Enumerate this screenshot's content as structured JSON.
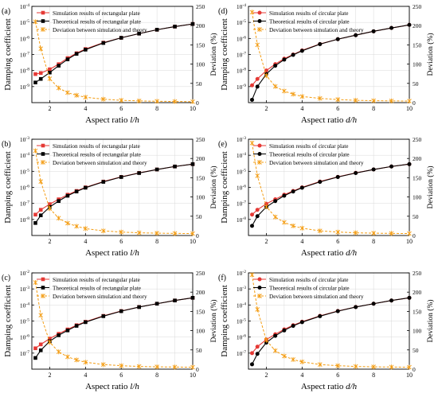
{
  "figure": {
    "label_x": "Aspect ratio",
    "label_y_left": "Damping coefficient",
    "label_y_right": "Deviation (%)",
    "colors": {
      "simulation": "#e53935",
      "theory": "#000000",
      "deviation": "#f39c12",
      "grid": "#d9d9d9"
    }
  },
  "chart_data": [
    {
      "panel": "(a)",
      "type": "line",
      "axis_var": "l/h",
      "log_y": true,
      "xlim": [
        1,
        10
      ],
      "ylim_exp": [
        -10,
        -4
      ],
      "yticks_exp": [
        -9,
        -8,
        -7,
        -6,
        -5,
        -4
      ],
      "y2lim": [
        0,
        250
      ],
      "y2ticks": [
        0,
        50,
        100,
        150,
        200,
        250
      ],
      "xticks": [
        2,
        4,
        6,
        8,
        10
      ],
      "x": [
        1.2,
        1.5,
        2,
        2.5,
        3,
        3.5,
        4,
        5,
        6,
        7,
        8,
        9,
        10
      ],
      "series": [
        {
          "name": "Simulation results of rectangular plate",
          "style": "square",
          "values": [
            6e-09,
            7e-09,
            1.2e-08,
            2.5e-08,
            6e-08,
            1.2e-07,
            2.2e-07,
            5.5e-07,
            1.1e-06,
            2e-06,
            3.5e-06,
            5.5e-06,
            8e-06
          ]
        },
        {
          "name": "Theoretical results of rectangular plate",
          "style": "square",
          "values": [
            1.8e-09,
            3e-09,
            7.5e-09,
            2e-08,
            5e-08,
            1.1e-07,
            2e-07,
            5.2e-07,
            1.1e-06,
            2e-06,
            3.5e-06,
            5.5e-06,
            8e-06
          ]
        },
        {
          "name": "Deviation between simulation and theory",
          "style": "cross",
          "axis": "right",
          "values": [
            210,
            140,
            62,
            38,
            26,
            19,
            14,
            9,
            6,
            4.5,
            3.5,
            3,
            2.5
          ]
        }
      ]
    },
    {
      "panel": "(b)",
      "type": "line",
      "axis_var": "l/h",
      "log_y": true,
      "xlim": [
        1,
        10
      ],
      "ylim_exp": [
        -9,
        -3
      ],
      "yticks_exp": [
        -8,
        -7,
        -6,
        -5,
        -4,
        -3
      ],
      "y2lim": [
        0,
        250
      ],
      "y2ticks": [
        0,
        50,
        100,
        150,
        200,
        250
      ],
      "xticks": [
        2,
        4,
        6,
        8,
        10
      ],
      "x": [
        1.2,
        1.5,
        2,
        2.5,
        3,
        3.5,
        4,
        5,
        6,
        7,
        8,
        9,
        10
      ],
      "series": [
        {
          "name": "Simulation results of rectangular plate",
          "style": "square",
          "values": [
            2e-08,
            4e-08,
            9e-08,
            1.8e-07,
            3.5e-07,
            6e-07,
            1e-06,
            2.3e-06,
            4.5e-06,
            8e-06,
            1.3e-05,
            2e-05,
            2.8e-05
          ]
        },
        {
          "name": "Theoretical results of rectangular plate",
          "style": "square",
          "values": [
            6e-09,
            1.8e-08,
            6e-08,
            1.4e-07,
            3e-07,
            5.5e-07,
            9.5e-07,
            2.2e-06,
            4.4e-06,
            7.8e-06,
            1.3e-05,
            2e-05,
            2.8e-05
          ]
        },
        {
          "name": "Deviation between simulation and theory",
          "style": "cross",
          "axis": "right",
          "values": [
            220,
            140,
            70,
            45,
            32,
            24,
            18,
            12,
            9,
            7,
            6,
            5.5,
            5
          ]
        }
      ]
    },
    {
      "panel": "(c)",
      "type": "line",
      "axis_var": "l/h",
      "log_y": true,
      "xlim": [
        1,
        10
      ],
      "ylim_exp": [
        -8,
        -2
      ],
      "yticks_exp": [
        -7,
        -6,
        -5,
        -4,
        -3,
        -2
      ],
      "y2lim": [
        0,
        250
      ],
      "y2ticks": [
        0,
        50,
        100,
        150,
        200,
        250
      ],
      "xticks": [
        2,
        4,
        6,
        8,
        10
      ],
      "x": [
        1.2,
        1.5,
        2,
        2.5,
        3,
        3.5,
        4,
        5,
        6,
        7,
        8,
        9,
        10
      ],
      "series": [
        {
          "name": "Simulation results of rectangular plate",
          "style": "square",
          "values": [
            2e-07,
            3.5e-07,
            8e-07,
            1.6e-06,
            3e-06,
            5.5e-06,
            9e-06,
            2.1e-05,
            4.2e-05,
            7.5e-05,
            0.00012,
            0.00019,
            0.00028
          ]
        },
        {
          "name": "Theoretical results of rectangular plate",
          "style": "square",
          "values": [
            5e-08,
            1.5e-07,
            5.5e-07,
            1.3e-06,
            2.6e-06,
            5e-06,
            8.5e-06,
            2e-05,
            4.1e-05,
            7.4e-05,
            0.00012,
            0.00019,
            0.00028
          ]
        },
        {
          "name": "Deviation between simulation and theory",
          "style": "cross",
          "axis": "right",
          "values": [
            225,
            140,
            70,
            45,
            32,
            24,
            18,
            12,
            9,
            7,
            6,
            5.5,
            5
          ]
        }
      ]
    },
    {
      "panel": "(d)",
      "type": "line",
      "axis_var": "d/h",
      "log_y": true,
      "xlim": [
        1,
        10
      ],
      "ylim_exp": [
        -10,
        -4
      ],
      "yticks_exp": [
        -9,
        -8,
        -7,
        -6,
        -5,
        -4
      ],
      "y2lim": [
        0,
        250
      ],
      "y2ticks": [
        0,
        50,
        100,
        150,
        200,
        250
      ],
      "xticks": [
        2,
        4,
        6,
        8,
        10
      ],
      "x": [
        1.2,
        1.5,
        2,
        2.5,
        3,
        3.5,
        4,
        5,
        6,
        7,
        8,
        9,
        10
      ],
      "series": [
        {
          "name": "Simulation results of circular plate",
          "style": "circle",
          "values": [
            1.2e-09,
            3e-09,
            1e-08,
            2.5e-08,
            5.5e-08,
            1e-07,
            1.8e-07,
            4.5e-07,
            9e-07,
            1.6e-06,
            2.8e-06,
            4.5e-06,
            7e-06
          ]
        },
        {
          "name": "Theoretical results of circular plate",
          "style": "circle",
          "values": [
            1.5e-10,
            1e-09,
            6e-09,
            2e-08,
            4.8e-08,
            9.5e-08,
            1.7e-07,
            4.4e-07,
            9e-07,
            1.6e-06,
            2.8e-06,
            4.5e-06,
            7e-06
          ]
        },
        {
          "name": "Deviation between simulation and theory",
          "style": "cross",
          "axis": "right",
          "values": [
            235,
            150,
            70,
            42,
            30,
            22,
            16,
            11,
            8,
            6,
            5,
            4.5,
            4
          ]
        }
      ]
    },
    {
      "panel": "(e)",
      "type": "line",
      "axis_var": "d/h",
      "log_y": true,
      "xlim": [
        1,
        10
      ],
      "ylim_exp": [
        -9,
        -3
      ],
      "yticks_exp": [
        -8,
        -7,
        -6,
        -5,
        -4,
        -3
      ],
      "y2lim": [
        0,
        250
      ],
      "y2ticks": [
        0,
        50,
        100,
        150,
        200,
        250
      ],
      "xticks": [
        2,
        4,
        6,
        8,
        10
      ],
      "x": [
        1.2,
        1.5,
        2,
        2.5,
        3,
        3.5,
        4,
        5,
        6,
        7,
        8,
        9,
        10
      ],
      "series": [
        {
          "name": "Simulation results of circular plate",
          "style": "circle",
          "values": [
            2e-08,
            4e-08,
            9.5e-08,
            1.8e-07,
            3.5e-07,
            6e-07,
            1e-06,
            2.3e-06,
            4.5e-06,
            8e-06,
            1.3e-05,
            2e-05,
            2.8e-05
          ]
        },
        {
          "name": "Theoretical results of circular plate",
          "style": "circle",
          "values": [
            4e-09,
            1.6e-08,
            6e-08,
            1.4e-07,
            3e-07,
            5.5e-07,
            9.5e-07,
            2.2e-06,
            4.4e-06,
            7.8e-06,
            1.3e-05,
            2e-05,
            2.8e-05
          ]
        },
        {
          "name": "Deviation between simulation and theory",
          "style": "cross",
          "axis": "right",
          "values": [
            240,
            155,
            75,
            48,
            34,
            25,
            19,
            12,
            9,
            7,
            6,
            5.5,
            5
          ]
        }
      ]
    },
    {
      "panel": "(f)",
      "type": "line",
      "axis_var": "d/h",
      "log_y": true,
      "xlim": [
        1,
        10
      ],
      "ylim_exp": [
        -8,
        -2
      ],
      "yticks_exp": [
        -7,
        -6,
        -5,
        -4,
        -3,
        -2
      ],
      "y2lim": [
        0,
        250
      ],
      "y2ticks": [
        0,
        50,
        100,
        150,
        200,
        250
      ],
      "xticks": [
        2,
        4,
        6,
        8,
        10
      ],
      "x": [
        1.2,
        1.5,
        2,
        2.5,
        3,
        3.5,
        4,
        5,
        6,
        7,
        8,
        9,
        10
      ],
      "series": [
        {
          "name": "Simulation results of circular plate",
          "style": "circle",
          "values": [
            1e-07,
            2.5e-07,
            7e-07,
            1.5e-06,
            3e-06,
            5.5e-06,
            9e-06,
            2.1e-05,
            4.2e-05,
            7.5e-05,
            0.00012,
            0.00019,
            0.00028
          ]
        },
        {
          "name": "Theoretical results of circular plate",
          "style": "circle",
          "values": [
            2e-08,
            9e-08,
            4.5e-07,
            1.2e-06,
            2.6e-06,
            5e-06,
            8.5e-06,
            2e-05,
            4.1e-05,
            7.4e-05,
            0.00012,
            0.00019,
            0.00028
          ]
        },
        {
          "name": "Deviation between simulation and theory",
          "style": "cross",
          "axis": "right",
          "values": [
            245,
            155,
            75,
            48,
            34,
            25,
            19,
            12,
            9,
            7,
            6,
            5.5,
            5
          ]
        }
      ]
    }
  ]
}
